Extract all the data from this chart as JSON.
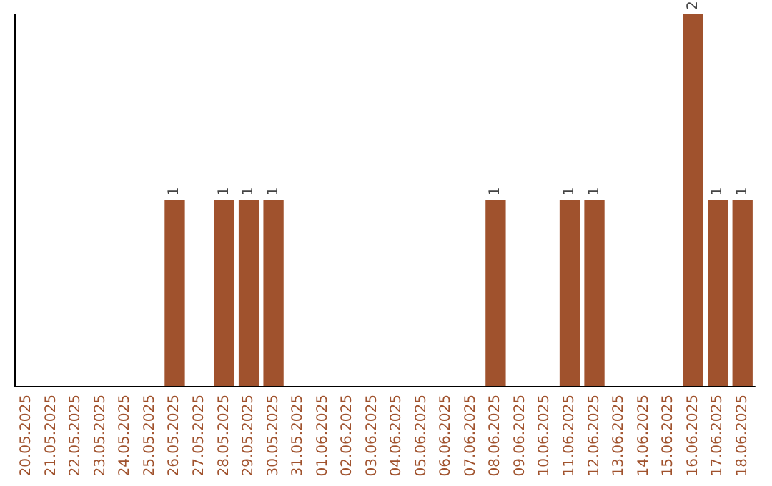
{
  "chart_data": {
    "type": "bar",
    "categories": [
      "20.05.2025",
      "21.05.2025",
      "22.05.2025",
      "23.05.2025",
      "24.05.2025",
      "25.05.2025",
      "26.05.2025",
      "27.05.2025",
      "28.05.2025",
      "29.05.2025",
      "30.05.2025",
      "31.05.2025",
      "01.06.2025",
      "02.06.2025",
      "03.06.2025",
      "04.06.2025",
      "05.06.2025",
      "06.06.2025",
      "07.06.2025",
      "08.06.2025",
      "09.06.2025",
      "10.06.2025",
      "11.06.2025",
      "12.06.2025",
      "13.06.2025",
      "14.06.2025",
      "15.06.2025",
      "16.06.2025",
      "17.06.2025",
      "18.06.2025"
    ],
    "values": [
      0,
      0,
      0,
      0,
      0,
      0,
      1,
      0,
      1,
      1,
      1,
      0,
      0,
      0,
      0,
      0,
      0,
      0,
      0,
      1,
      0,
      0,
      1,
      1,
      0,
      0,
      0,
      2,
      1,
      1
    ],
    "value_labels": [
      null,
      null,
      null,
      null,
      null,
      null,
      "1",
      null,
      "1",
      "1",
      "1",
      null,
      null,
      null,
      null,
      null,
      null,
      null,
      null,
      "1",
      null,
      null,
      "1",
      "1",
      null,
      null,
      null,
      "2",
      "1",
      "1"
    ],
    "color": "#a0522d",
    "grid": false,
    "tick_labels": "x"
  }
}
